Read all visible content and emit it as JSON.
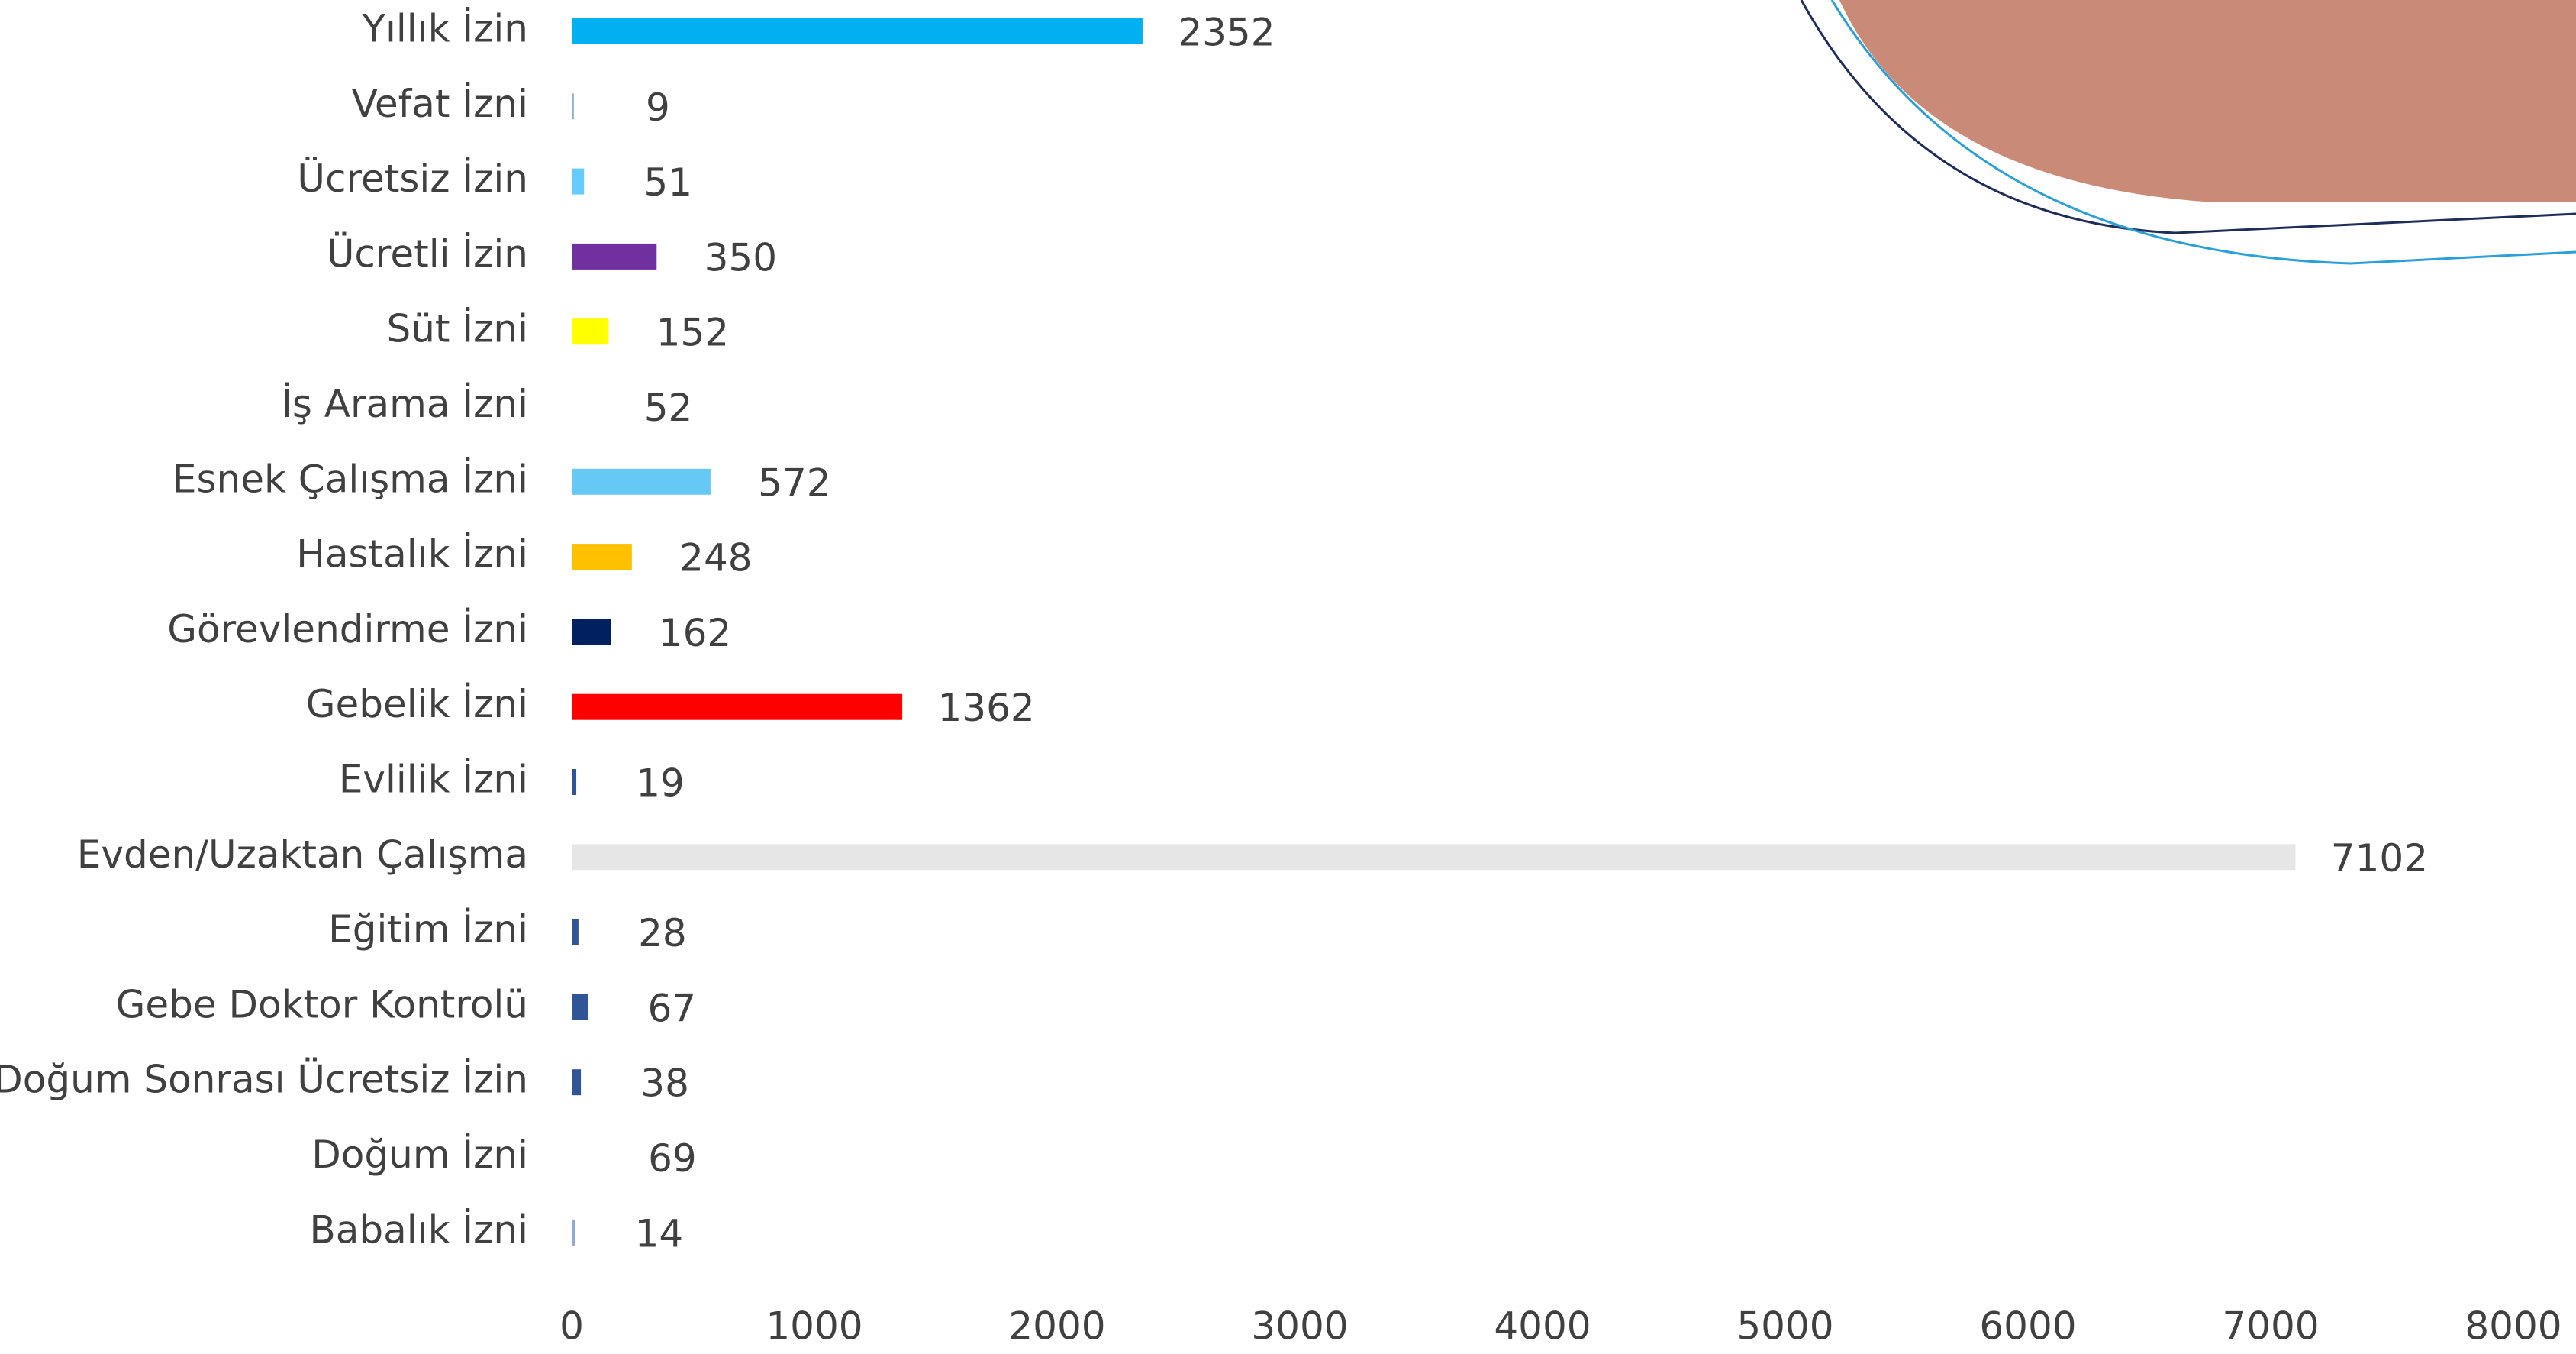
{
  "chart_data": {
    "type": "hbar",
    "categories": [
      "Yıllık İzin",
      "Vefat İzni",
      "Ücretsiz İzin",
      "Ücretli İzin",
      "Süt İzni",
      "İş Arama İzni",
      "Esnek Çalışma İzni",
      "Hastalık İzni",
      "Görevlendirme İzni",
      "Gebelik İzni",
      "Evlilik İzni",
      "Evden/Uzaktan Çalışma",
      "Eğitim İzni",
      "Gebe Doktor Kontrolü",
      "Doğum Sonrası Ücretsiz İzin",
      "Doğum İzni",
      "Babalık İzni"
    ],
    "values": [
      2352,
      9,
      51,
      350,
      152,
      52,
      572,
      248,
      162,
      1362,
      19,
      7102,
      28,
      67,
      38,
      69,
      14
    ],
    "colors": [
      "#00b0f0",
      "#8faadc",
      "#66ccff",
      "#7030a0",
      "#ffff00",
      "#ffffff",
      "#66c8f5",
      "#ffc000",
      "#002060",
      "#ff0000",
      "#2f5597",
      "#e7e6e6",
      "#2f5597",
      "#2f5597",
      "#2f5597",
      "#ffffff",
      "#8faadc"
    ],
    "xlim": [
      0,
      8000
    ],
    "xticks": [
      0,
      1000,
      2000,
      3000,
      4000,
      5000,
      6000,
      7000,
      8000
    ],
    "grid": false
  }
}
